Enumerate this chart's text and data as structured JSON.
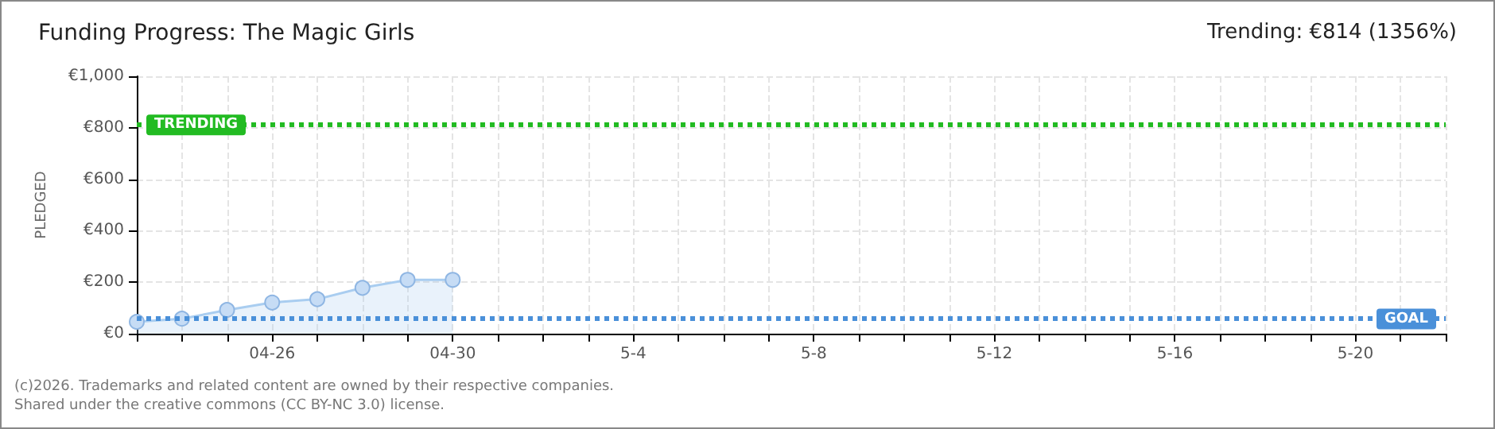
{
  "chart_data": {
    "type": "area",
    "title": "Funding Progress: The Magic Girls",
    "subtitle": "Trending: €814 (1356%)",
    "ylabel": "PLEDGED",
    "categories": [
      null,
      null,
      null,
      "04-26",
      null,
      null,
      null,
      "04-30",
      null,
      null,
      null,
      "5-4",
      null,
      null,
      null,
      "5-8",
      null,
      null,
      null,
      "5-12",
      null,
      null,
      null,
      "5-16",
      null,
      null,
      null,
      "5-20",
      null,
      null
    ],
    "series": [
      {
        "color": "#a9cdf0",
        "values": [
          46,
          58,
          92,
          121,
          134,
          178,
          209,
          209,
          null,
          null,
          null,
          null,
          null,
          null,
          null,
          null,
          null,
          null,
          null,
          null,
          null,
          null,
          null,
          null,
          null,
          null,
          null,
          null,
          null,
          null
        ]
      }
    ],
    "ylim": [
      0,
      1000
    ],
    "yticks": [
      {
        "value": 0,
        "label": "€0"
      },
      {
        "value": 200,
        "label": "€200"
      },
      {
        "value": 400,
        "label": "€400"
      },
      {
        "value": 600,
        "label": "€600"
      },
      {
        "value": 800,
        "label": "€800"
      },
      {
        "value": 1000,
        "label": "€1,000"
      }
    ],
    "ref_lines": [
      {
        "axis": "y",
        "value": 814,
        "label": "TRENDING",
        "color": "#22bb22",
        "line_style": "dotted"
      },
      {
        "axis": "y",
        "value": 60,
        "label": "GOAL",
        "color": "#4a90d9",
        "line_style": "dotted"
      }
    ],
    "grid": true,
    "marker": "circle",
    "annotations": [
      "(c)2026. Trademarks and related content are owned by their respective companies.",
      "Shared under the creative commons (CC BY-NC 3.0) license."
    ]
  }
}
